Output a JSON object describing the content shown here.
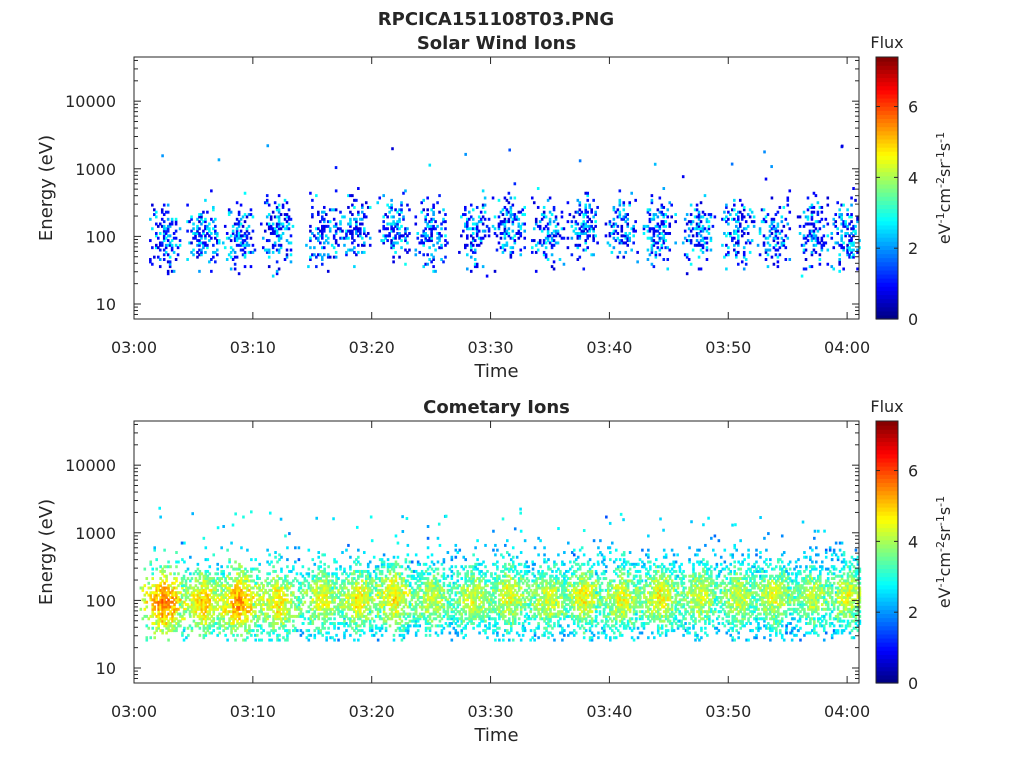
{
  "figure_title": "RPCICA151108T03.PNG",
  "chart_data": [
    {
      "type": "heatmap",
      "title": "Solar Wind Ions",
      "xlabel": "Time",
      "ylabel": "Energy (eV)",
      "x_ticks": [
        "03:00",
        "03:10",
        "03:20",
        "03:30",
        "03:40",
        "03:50",
        "04:00"
      ],
      "xlim": [
        "03:00",
        "04:01"
      ],
      "y_scale": "log",
      "y_ticks": [
        "10",
        "100",
        "1000",
        "10000"
      ],
      "ylim": [
        6,
        45000
      ],
      "colorbar": {
        "title": "Flux",
        "units": "eV-1 cm-2 sr-1 s-1",
        "units_parts": [
          "eV",
          "-1",
          "cm",
          "-2",
          "sr",
          "-1",
          "s",
          "-1"
        ],
        "ticks": [
          "0",
          "2",
          "4",
          "6"
        ],
        "range": [
          0,
          7.4
        ],
        "colormap": "jet"
      },
      "bursts": [
        {
          "t": 2.5,
          "e": 90,
          "flux": 2.0
        },
        {
          "t": 5.8,
          "e": 100,
          "flux": 1.1
        },
        {
          "t": 8.8,
          "e": 90,
          "flux": 1.5
        },
        {
          "t": 12.0,
          "e": 110,
          "flux": 1.4
        },
        {
          "t": 15.8,
          "e": 110,
          "flux": 1.0
        },
        {
          "t": 18.5,
          "e": 130,
          "flux": 1.1
        },
        {
          "t": 21.8,
          "e": 130,
          "flux": 1.3
        },
        {
          "t": 25.0,
          "e": 110,
          "flux": 1.1
        },
        {
          "t": 28.5,
          "e": 110,
          "flux": 1.2
        },
        {
          "t": 31.5,
          "e": 140,
          "flux": 1.1
        },
        {
          "t": 34.8,
          "e": 110,
          "flux": 1.0
        },
        {
          "t": 37.8,
          "e": 130,
          "flux": 1.1
        },
        {
          "t": 41.0,
          "e": 130,
          "flux": 1.2
        },
        {
          "t": 44.2,
          "e": 110,
          "flux": 1.2
        },
        {
          "t": 47.5,
          "e": 110,
          "flux": 1.1
        },
        {
          "t": 50.8,
          "e": 110,
          "flux": 1.0
        },
        {
          "t": 53.8,
          "e": 110,
          "flux": 1.0
        },
        {
          "t": 57.0,
          "e": 110,
          "flux": 1.1
        },
        {
          "t": 60.0,
          "e": 100,
          "flux": 1.4
        }
      ]
    },
    {
      "type": "heatmap",
      "title": "Cometary Ions",
      "xlabel": "Time",
      "ylabel": "Energy (eV)",
      "x_ticks": [
        "03:00",
        "03:10",
        "03:20",
        "03:30",
        "03:40",
        "03:50",
        "04:00"
      ],
      "xlim": [
        "03:00",
        "04:01"
      ],
      "y_scale": "log",
      "y_ticks": [
        "10",
        "100",
        "1000",
        "10000"
      ],
      "ylim": [
        6,
        45000
      ],
      "colorbar": {
        "title": "Flux",
        "units": "eV-1 cm-2 sr-1 s-1",
        "units_parts": [
          "eV",
          "-1",
          "cm",
          "-2",
          "sr",
          "-1",
          "s",
          "-1"
        ],
        "ticks": [
          "0",
          "2",
          "4",
          "6"
        ],
        "range": [
          0,
          7.4
        ],
        "colormap": "jet"
      },
      "bursts": [
        {
          "t": 2.5,
          "e": 90,
          "flux": 5.6
        },
        {
          "t": 5.8,
          "e": 90,
          "flux": 5.0
        },
        {
          "t": 8.8,
          "e": 90,
          "flux": 5.4
        },
        {
          "t": 12.0,
          "e": 90,
          "flux": 4.8
        },
        {
          "t": 15.8,
          "e": 100,
          "flux": 4.5
        },
        {
          "t": 18.8,
          "e": 100,
          "flux": 4.7
        },
        {
          "t": 21.8,
          "e": 110,
          "flux": 4.8
        },
        {
          "t": 25.0,
          "e": 100,
          "flux": 4.3
        },
        {
          "t": 28.5,
          "e": 100,
          "flux": 4.4
        },
        {
          "t": 31.5,
          "e": 110,
          "flux": 4.5
        },
        {
          "t": 34.8,
          "e": 100,
          "flux": 4.4
        },
        {
          "t": 37.8,
          "e": 110,
          "flux": 4.6
        },
        {
          "t": 41.0,
          "e": 100,
          "flux": 4.5
        },
        {
          "t": 44.2,
          "e": 110,
          "flux": 4.6
        },
        {
          "t": 47.5,
          "e": 110,
          "flux": 4.4
        },
        {
          "t": 50.8,
          "e": 110,
          "flux": 4.3
        },
        {
          "t": 53.8,
          "e": 110,
          "flux": 4.4
        },
        {
          "t": 57.0,
          "e": 110,
          "flux": 4.2
        },
        {
          "t": 60.0,
          "e": 110,
          "flux": 4.4
        }
      ]
    }
  ]
}
